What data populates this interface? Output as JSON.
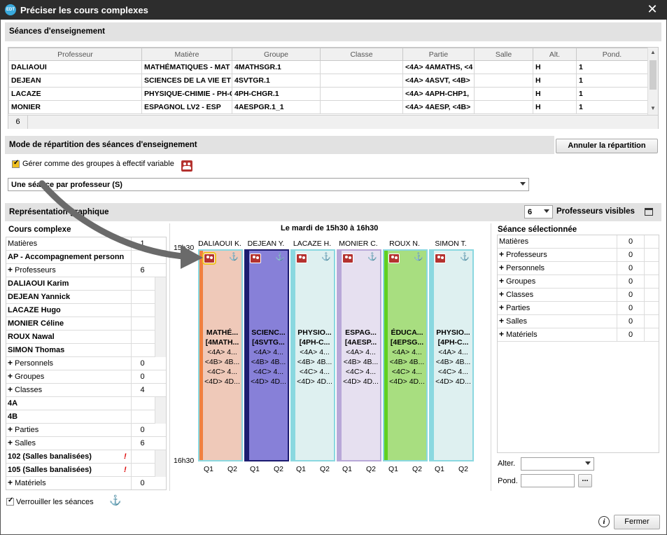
{
  "window": {
    "title": "Préciser les cours complexes",
    "logo": "EDT"
  },
  "seances_section": {
    "title": "Séances d'enseignement"
  },
  "table": {
    "headers": [
      "Professeur",
      "Matière",
      "Groupe",
      "Classe",
      "Partie",
      "Salle",
      "Alt.",
      "Pond."
    ],
    "rows": [
      [
        "DALIAOUI",
        "MATHÉMATIQUES - MAT",
        "4MATHSGR.1",
        "",
        "<4A> 4AMATHS, <4",
        "",
        "H",
        "1"
      ],
      [
        "DEJEAN",
        "SCIENCES DE LA VIE ET",
        "4SVTGR.1",
        "",
        "<4A> 4ASVT, <4B>",
        "",
        "H",
        "1"
      ],
      [
        "LACAZE",
        "PHYSIQUE-CHIMIE - PH-C",
        "4PH-CHGR.1",
        "",
        "<4A> 4APH-CHP1,",
        "",
        "H",
        "1"
      ],
      [
        "MONIER",
        "ESPAGNOL LV2 - ESP",
        "4AESPGR.1_1",
        "",
        "<4A> 4AESP, <4B>",
        "",
        "H",
        "1"
      ]
    ],
    "count": "6"
  },
  "mode_section": {
    "title": "Mode de répartition des séances d'enseignement",
    "cancel_button": "Annuler la répartition",
    "checkbox_label": "Gérer comme des groupes à effectif variable",
    "dropdown_value": "Une séance par professeur (S)"
  },
  "graph_section": {
    "title": "Représentation graphique",
    "visible_count": "6",
    "visible_label": "Professeurs visibles",
    "schedule_title": "Le mardi de 15h30 à 16h30",
    "time_start": "15h30",
    "time_end": "16h30"
  },
  "cours_complexe": {
    "title": "Cours complexe",
    "rows": [
      {
        "label": "Matières",
        "num": "1",
        "kind": "cat"
      },
      {
        "label": "AP - Accompagnement personn",
        "num": "",
        "kind": "item"
      },
      {
        "label": "Professeurs",
        "num": "6",
        "kind": "plus"
      },
      {
        "label": "DALIAOUI Karim",
        "num": "",
        "kind": "item"
      },
      {
        "label": "DEJEAN Yannick",
        "num": "",
        "kind": "item"
      },
      {
        "label": "LACAZE Hugo",
        "num": "",
        "kind": "item"
      },
      {
        "label": "MONIER Céline",
        "num": "",
        "kind": "item"
      },
      {
        "label": "ROUX Nawal",
        "num": "",
        "kind": "item"
      },
      {
        "label": "SIMON Thomas",
        "num": "",
        "kind": "item"
      },
      {
        "label": "Personnels",
        "num": "0",
        "kind": "plus"
      },
      {
        "label": "Groupes",
        "num": "0",
        "kind": "plus"
      },
      {
        "label": "Classes",
        "num": "4",
        "kind": "plus"
      },
      {
        "label": "4A",
        "num": "",
        "kind": "item"
      },
      {
        "label": "4B",
        "num": "",
        "kind": "item"
      },
      {
        "label": "Parties",
        "num": "0",
        "kind": "plus"
      },
      {
        "label": "Salles",
        "num": "6",
        "kind": "plus"
      },
      {
        "label": "102 (Salles banalisées)",
        "num": "",
        "kind": "warn"
      },
      {
        "label": "105 (Salles banalisées)",
        "num": "",
        "kind": "warn"
      },
      {
        "label": "Matériels",
        "num": "0",
        "kind": "plus"
      }
    ],
    "warn_mark": "!"
  },
  "columns": [
    {
      "name": "DALIAOUI K.",
      "subject": "MATHÉ...",
      "group": "[4MATH...",
      "lines": [
        "<4A> 4...",
        "<4B> 4B...",
        "<4C> 4...",
        "<4D> 4D..."
      ],
      "color": "#efc9b9",
      "stripe": "#f08040",
      "border": "#8ad8e0"
    },
    {
      "name": "DEJEAN Y.",
      "subject": "SCIENC...",
      "group": "[4SVTG...",
      "lines": [
        "<4A> 4...",
        "<4B> 4B...",
        "<4C> 4...",
        "<4D> 4D..."
      ],
      "color": "#8780d8",
      "stripe": "#1c1c70",
      "border": "#1c1c70"
    },
    {
      "name": "LACAZE H.",
      "subject": "PHYSIO...",
      "group": "[4PH-C...",
      "lines": [
        "<4A> 4...",
        "<4B> 4B...",
        "<4C> 4...",
        "<4D> 4D..."
      ],
      "color": "#def0f0",
      "stripe": "#8ad8e0",
      "border": "#8ad8e0"
    },
    {
      "name": "MONIER C.",
      "subject": "ESPAG...",
      "group": "[4AESP...",
      "lines": [
        "<4A> 4...",
        "<4B> 4B...",
        "<4C> 4...",
        "<4D> 4D..."
      ],
      "color": "#e6e0f0",
      "stripe": "#b8a8d8",
      "border": "#b8a8d8"
    },
    {
      "name": "ROUX N.",
      "subject": "ÉDUCA...",
      "group": "[4EPSG...",
      "lines": [
        "<4A> 4...",
        "<4B> 4B...",
        "<4C> 4...",
        "<4D> 4D..."
      ],
      "color": "#a8de80",
      "stripe": "#60d020",
      "border": "#8ad8e0"
    },
    {
      "name": "SIMON T.",
      "subject": "PHYSIO...",
      "group": "[4PH-C...",
      "lines": [
        "<4A> 4...",
        "<4B> 4B...",
        "<4C> 4...",
        "<4D> 4D..."
      ],
      "color": "#def0f0",
      "stripe": "#8ad8e0",
      "border": "#8ad8e0"
    }
  ],
  "q_labels": [
    "Q1",
    "Q2"
  ],
  "seance_selectionnee": {
    "title": "Séance sélectionnée",
    "rows": [
      {
        "label": "Matières",
        "num": "0",
        "plus": false
      },
      {
        "label": "Professeurs",
        "num": "0",
        "plus": true
      },
      {
        "label": "Personnels",
        "num": "0",
        "plus": true
      },
      {
        "label": "Groupes",
        "num": "0",
        "plus": true
      },
      {
        "label": "Classes",
        "num": "0",
        "plus": true
      },
      {
        "label": "Parties",
        "num": "0",
        "plus": true
      },
      {
        "label": "Salles",
        "num": "0",
        "plus": true
      },
      {
        "label": "Matériels",
        "num": "0",
        "plus": true
      }
    ],
    "alter_label": "Alter.",
    "pond_label": "Pond.",
    "pond_button": "..."
  },
  "footer": {
    "lock_label": "Verrouiller les séances",
    "close_button": "Fermer",
    "info": "i"
  },
  "icons": [
    "app-logo-icon",
    "close-icon",
    "groups-icon",
    "anchor-icon",
    "info-icon",
    "dropdown-arrow-icon",
    "window-icon"
  ]
}
